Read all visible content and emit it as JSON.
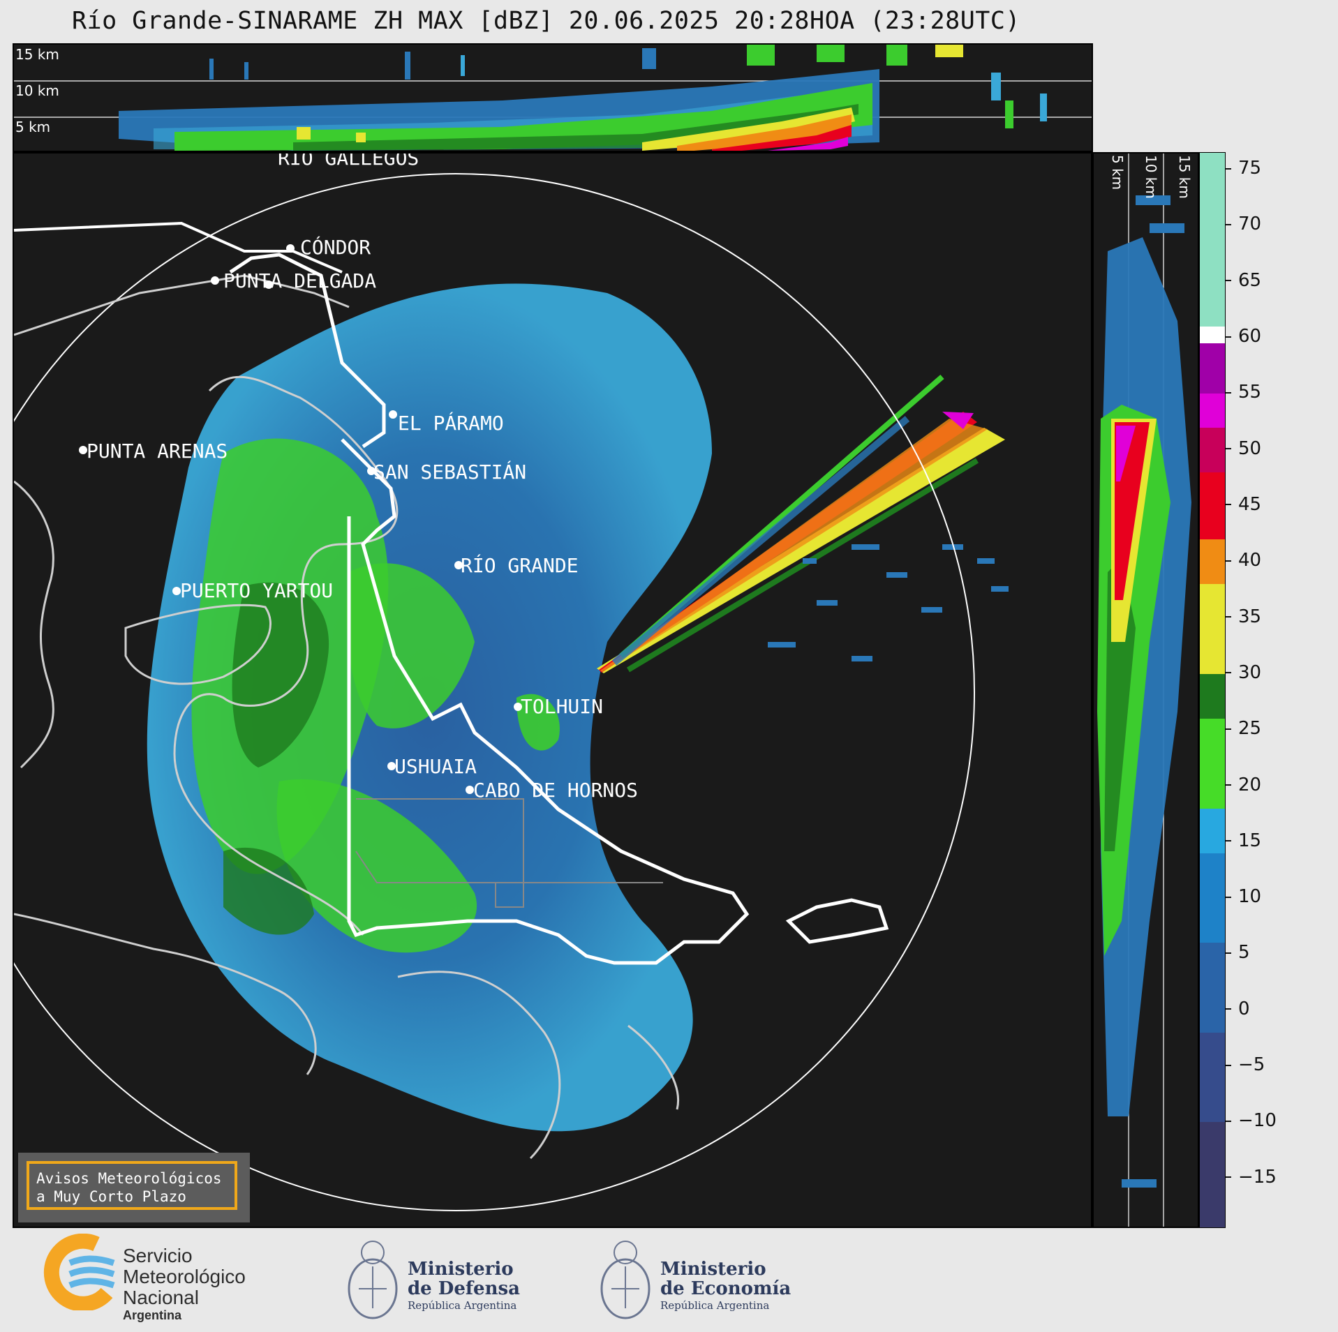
{
  "title": "Río Grande-SINARAME ZH MAX [dBZ] 20.06.2025 20:28HOA (23:28UTC)",
  "top_panel": {
    "height_labels": [
      "15 km",
      "10 km",
      "5 km"
    ]
  },
  "side_panel": {
    "height_labels": [
      "5 km",
      "10 km",
      "15 km"
    ]
  },
  "cities": [
    {
      "name": "RÍO GALLEGOS"
    },
    {
      "name": "CÓNDOR"
    },
    {
      "name": "PUNTA DELGADA"
    },
    {
      "name": "EL PÁRAMO"
    },
    {
      "name": "PUNTA ARENAS"
    },
    {
      "name": "SAN SEBASTIÁN"
    },
    {
      "name": "RÍO GRANDE"
    },
    {
      "name": "PUERTO YARTOU"
    },
    {
      "name": "TOLHUIN"
    },
    {
      "name": "USHUAIA"
    },
    {
      "name": "CABO DE HORNOS"
    }
  ],
  "colorbar": {
    "ticks": [
      "75",
      "70",
      "65",
      "60",
      "55",
      "50",
      "45",
      "40",
      "35",
      "30",
      "25",
      "20",
      "15",
      "10",
      "5",
      "0",
      "−5",
      "−10",
      "−15"
    ],
    "min": -19.5,
    "max": 76.5,
    "bands": [
      {
        "from": 61,
        "to": 76.5,
        "color": "#8ee0c2"
      },
      {
        "from": 59.5,
        "to": 61,
        "color": "#ffffff"
      },
      {
        "from": 55,
        "to": 59.5,
        "color": "#a000a8"
      },
      {
        "from": 52,
        "to": 55,
        "color": "#e000d8"
      },
      {
        "from": 48,
        "to": 52,
        "color": "#c8005a"
      },
      {
        "from": 42,
        "to": 48,
        "color": "#e8001e"
      },
      {
        "from": 38,
        "to": 42,
        "color": "#f08c14"
      },
      {
        "from": 30,
        "to": 38,
        "color": "#e6e632"
      },
      {
        "from": 26,
        "to": 30,
        "color": "#1e7a1e"
      },
      {
        "from": 18,
        "to": 26,
        "color": "#46dc28"
      },
      {
        "from": 14,
        "to": 18,
        "color": "#28a8e0"
      },
      {
        "from": 6,
        "to": 14,
        "color": "#1e82c8"
      },
      {
        "from": -2,
        "to": 6,
        "color": "#2a64a8"
      },
      {
        "from": -10,
        "to": -2,
        "color": "#364c8c"
      },
      {
        "from": -19.5,
        "to": -10,
        "color": "#3a3a6a"
      }
    ]
  },
  "avisos": {
    "line1": "Avisos Meteorológicos",
    "line2": "a Muy Corto Plazo"
  },
  "logos": {
    "smn": {
      "line1": "Servicio",
      "line2": "Meteorológico",
      "line3": "Nacional",
      "sub": "Argentina"
    },
    "defensa": {
      "line1": "Ministerio",
      "line2": "de Defensa",
      "sub": "República Argentina"
    },
    "economia": {
      "line1": "Ministerio",
      "line2": "de Economía",
      "sub": "República Argentina"
    }
  }
}
